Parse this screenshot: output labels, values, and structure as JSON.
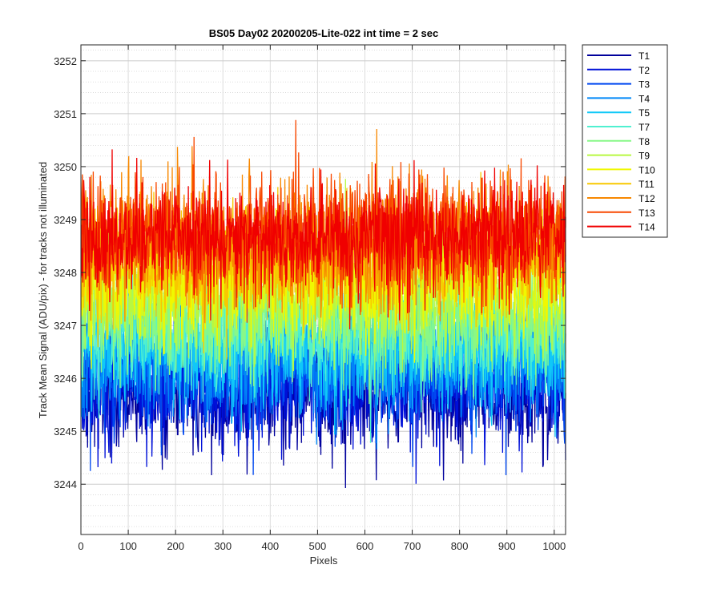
{
  "chart_data": {
    "type": "line",
    "title": "BS05 Day02 20200205-Lite-022 int time = 2 sec",
    "xlabel": "Pixels",
    "ylabel": "Track Mean Signal (ADU/pix) - for tracks not illuminated",
    "xlim": [
      0,
      1024
    ],
    "ylim": [
      3243.05,
      3252.3
    ],
    "x_ticks": [
      0,
      100,
      200,
      300,
      400,
      500,
      600,
      700,
      800,
      900,
      1000
    ],
    "y_ticks": [
      3244,
      3245,
      3246,
      3247,
      3248,
      3249,
      3250,
      3251,
      3252
    ],
    "grid": "major-and-minor",
    "legend_position": "outside-top-right",
    "n_pixels": 1024,
    "series": [
      {
        "name": "T1",
        "color": "#00009C",
        "mean": 3245.7,
        "noise_sd": 0.55
      },
      {
        "name": "T2",
        "color": "#0010D8",
        "mean": 3245.85,
        "noise_sd": 0.55
      },
      {
        "name": "T3",
        "color": "#0048F0",
        "mean": 3246.1,
        "noise_sd": 0.55
      },
      {
        "name": "T4",
        "color": "#0088F8",
        "mean": 3246.4,
        "noise_sd": 0.55
      },
      {
        "name": "T5",
        "color": "#10C8F8",
        "mean": 3246.6,
        "noise_sd": 0.55
      },
      {
        "name": "T7",
        "color": "#50F0D0",
        "mean": 3246.9,
        "noise_sd": 0.55
      },
      {
        "name": "T8",
        "color": "#88F888",
        "mean": 3247.2,
        "noise_sd": 0.55
      },
      {
        "name": "T9",
        "color": "#B8F840",
        "mean": 3247.6,
        "noise_sd": 0.55
      },
      {
        "name": "T10",
        "color": "#F0F800",
        "mean": 3247.9,
        "noise_sd": 0.55
      },
      {
        "name": "T11",
        "color": "#F8C800",
        "mean": 3248.3,
        "noise_sd": 0.55
      },
      {
        "name": "T12",
        "color": "#F88800",
        "mean": 3248.6,
        "noise_sd": 0.6
      },
      {
        "name": "T13",
        "color": "#F84800",
        "mean": 3248.75,
        "noise_sd": 0.55
      },
      {
        "name": "T14",
        "color": "#F00000",
        "mean": 3248.7,
        "noise_sd": 0.55
      }
    ]
  }
}
